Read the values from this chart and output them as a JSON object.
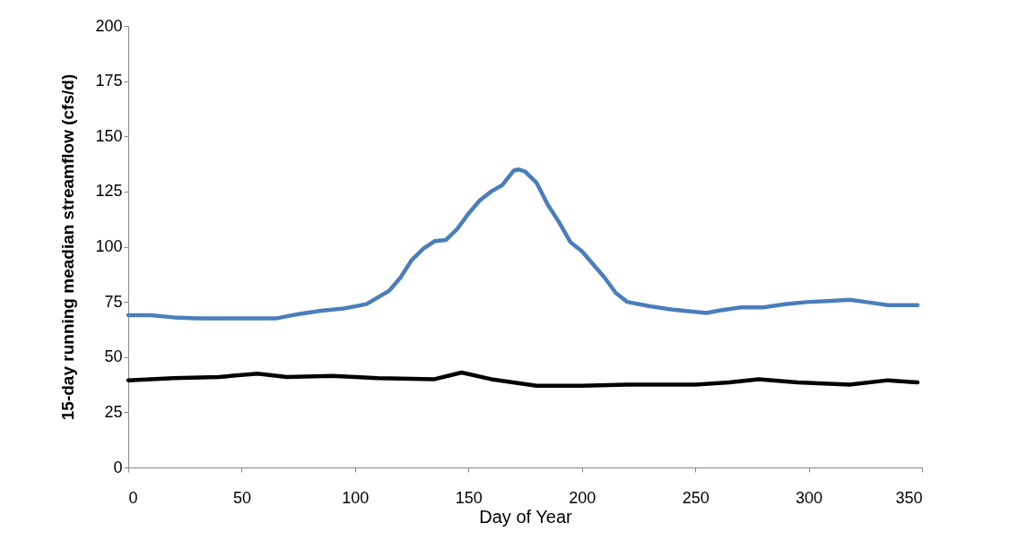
{
  "chart_data": {
    "type": "line",
    "xlabel": "Day of Year",
    "ylabel": "15-day running meadian streamflow (cfs/d)",
    "xlim": [
      0,
      350
    ],
    "xticks": [
      0,
      50,
      100,
      150,
      200,
      250,
      300,
      350
    ],
    "ylim": [
      0,
      200
    ],
    "yticks": [
      0,
      25,
      50,
      75,
      100,
      125,
      150,
      175,
      200
    ],
    "grid": false,
    "marker": "none",
    "line_style": "solid",
    "series": [
      {
        "color": "#4a7ebb",
        "x": [
          0,
          10,
          20,
          30,
          40,
          50,
          65,
          75,
          85,
          95,
          105,
          115,
          120,
          125,
          130,
          135,
          140,
          145,
          150,
          155,
          160,
          165,
          170,
          172,
          175,
          180,
          185,
          190,
          195,
          200,
          205,
          210,
          215,
          220,
          230,
          240,
          250,
          255,
          260,
          270,
          280,
          290,
          300,
          310,
          318,
          325,
          335,
          348
        ],
        "values": [
          69,
          69,
          68,
          67.5,
          67.5,
          67.5,
          67.5,
          69.5,
          71,
          72,
          74,
          80,
          86,
          94,
          99,
          102.5,
          103,
          108,
          115,
          121,
          125,
          128,
          134.5,
          135,
          134,
          129,
          119,
          111,
          102,
          98,
          92,
          86,
          79,
          75,
          73,
          71.5,
          70.5,
          70,
          71,
          72.5,
          72.5,
          74,
          75,
          75.5,
          76,
          75,
          73.5,
          73.5
        ]
      },
      {
        "color": "#000000",
        "x": [
          0,
          20,
          40,
          57,
          70,
          90,
          110,
          135,
          147,
          160,
          180,
          200,
          220,
          250,
          265,
          278,
          295,
          318,
          335,
          348
        ],
        "values": [
          39.5,
          40.5,
          41,
          42.5,
          41,
          41.5,
          40.5,
          40,
          43,
          40,
          37,
          37,
          37.5,
          37.5,
          38.5,
          40,
          38.5,
          37.5,
          39.5,
          38.5
        ]
      }
    ]
  }
}
